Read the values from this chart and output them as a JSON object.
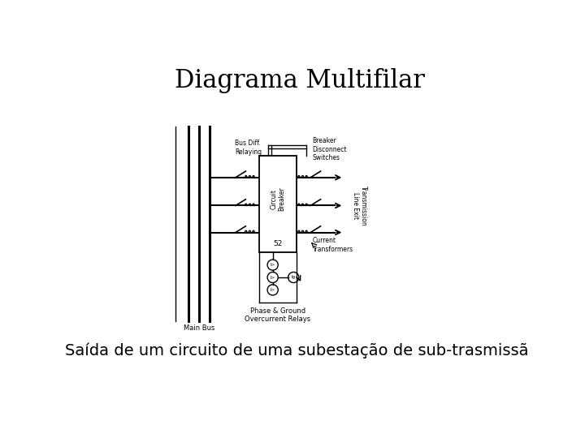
{
  "title": "Diagrama Multifilar",
  "subtitle": "Saída de um circuito de uma subestação de sub-trasmissã",
  "title_fontsize": 22,
  "subtitle_fontsize": 14,
  "bg_color": "#ffffff",
  "line_color": "#000000",
  "label_bus_diff": "Bus Diff.\nRelaying",
  "label_breaker_disconnect": "Breaker\nDisconnect\nSwitches",
  "label_circuit_breaker": "Circuit\nBreaker",
  "label_52": "52",
  "label_current_transformers": "Current\nTransformers",
  "label_transmission": "Transmission\nLine Exit",
  "label_main_bus": "Main Bus",
  "label_phase_ground": "Phase & Ground\nOvercurrent Relays"
}
